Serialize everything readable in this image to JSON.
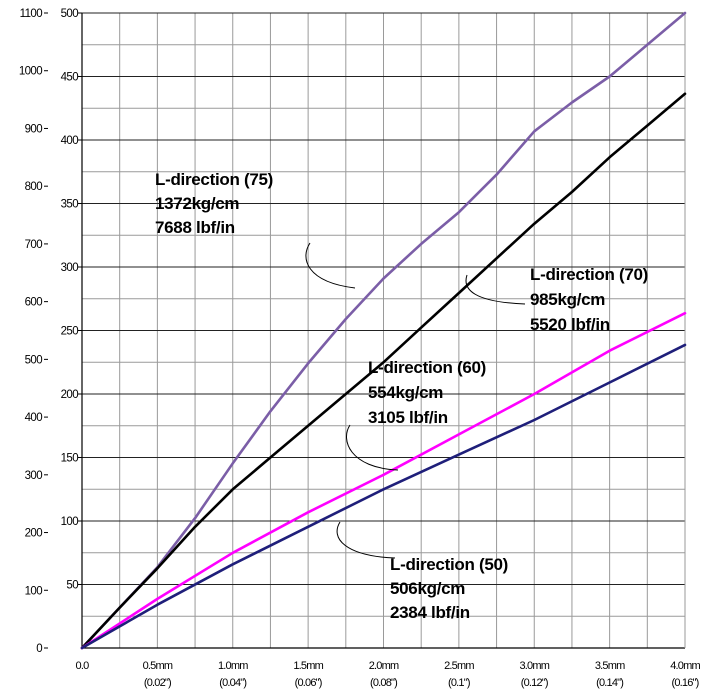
{
  "chart_data": {
    "type": "line",
    "title": "",
    "xlabel": "",
    "ylabel": "",
    "xlim": [
      0,
      4.0
    ],
    "ylim_left": [
      0,
      1100
    ],
    "ylim_right": [
      0,
      500
    ],
    "grid": true,
    "legend": "none",
    "x_ticks": [
      {
        "value": 0.0,
        "label": "0.0",
        "sub": ""
      },
      {
        "value": 0.5,
        "label": "0.5mm",
        "sub": "(0.02\")"
      },
      {
        "value": 1.0,
        "label": "1.0mm",
        "sub": "(0.04\")"
      },
      {
        "value": 1.5,
        "label": "1.5mm",
        "sub": "(0.06\")"
      },
      {
        "value": 2.0,
        "label": "2.0mm",
        "sub": "(0.08\")"
      },
      {
        "value": 2.5,
        "label": "2.5mm",
        "sub": "(0.1\")"
      },
      {
        "value": 3.0,
        "label": "3.0mm",
        "sub": "(0.12\")"
      },
      {
        "value": 3.5,
        "label": "3.5mm",
        "sub": "(0.14\")"
      },
      {
        "value": 4.0,
        "label": "4.0mm",
        "sub": "(0.16\")"
      }
    ],
    "left_ticks": [
      0,
      100,
      200,
      300,
      400,
      500,
      600,
      700,
      800,
      900,
      1000,
      1100
    ],
    "right_ticks": [
      50,
      100,
      150,
      200,
      250,
      300,
      350,
      400,
      450,
      500
    ],
    "series": [
      {
        "color": "#7b5ea7",
        "x": [
          0,
          0.25,
          0.5,
          0.75,
          1.0,
          1.25,
          1.5,
          1.75,
          2.0,
          2.25,
          2.5,
          2.75,
          3.0,
          3.25,
          3.5,
          3.75,
          4.0
        ],
        "y": [
          0,
          70,
          140,
          225,
          320,
          410,
          493,
          570,
          640,
          700,
          755,
          820,
          895,
          945,
          990,
          1045,
          1100
        ]
      },
      {
        "color": "#000000",
        "x": [
          0,
          0.25,
          0.5,
          0.75,
          1.0,
          1.25,
          1.5,
          1.75,
          2.0,
          2.25,
          2.5,
          2.75,
          3.0,
          3.25,
          3.5,
          3.75,
          4.0
        ],
        "y": [
          0,
          70,
          138,
          210,
          275,
          330,
          385,
          440,
          495,
          555,
          615,
          675,
          735,
          790,
          850,
          905,
          960
        ]
      },
      {
        "color": "#ff00ff",
        "x": [
          0,
          0.5,
          1.0,
          1.5,
          2.0,
          2.5,
          3.0,
          3.5,
          4.0
        ],
        "y": [
          0,
          85,
          165,
          235,
          300,
          370,
          440,
          515,
          580
        ]
      },
      {
        "color": "#1f1f7a",
        "x": [
          0,
          0.5,
          1.0,
          1.5,
          2.0,
          2.5,
          3.0,
          3.5,
          4.0
        ],
        "y": [
          0,
          75,
          145,
          210,
          275,
          335,
          395,
          460,
          525
        ]
      }
    ],
    "annotations": [
      {
        "lines": [
          "L-direction (75)",
          "  1372kg/cm",
          "7688 lbf/in"
        ]
      },
      {
        "lines": [
          "L-direction (70)",
          "985kg/cm",
          "5520 lbf/in"
        ]
      },
      {
        "lines": [
          "L-direction (60)",
          "554kg/cm",
          "3105 lbf/in"
        ]
      },
      {
        "lines": [
          "L-direction (50)",
          "  506kg/cm",
          "2384 lbf/in"
        ]
      }
    ]
  }
}
